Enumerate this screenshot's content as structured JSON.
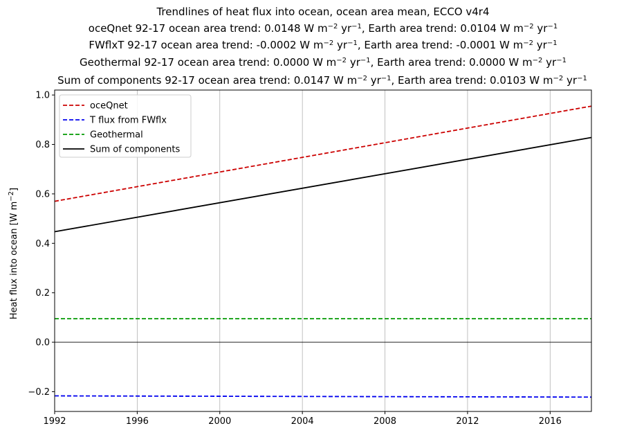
{
  "chart_data": {
    "type": "line",
    "title_lines": [
      {
        "text": "Trendlines of heat flux into ocean, ocean area mean, ECCO v4r4"
      },
      {
        "pre": "oceQnet 92-17 ocean area trend: 0.0148 W m",
        "sup1": "−2",
        "mid": " yr",
        "sup2": "−1",
        "post": ", Earth area trend: 0.0104 W m",
        "sup3": "−2",
        "mid2": " yr",
        "sup4": "−1"
      },
      {
        "pre": "FWflxT 92-17 ocean area trend: -0.0002 W m",
        "sup1": "−2",
        "mid": " yr",
        "sup2": "−1",
        "post": ", Earth area trend: -0.0001 W m",
        "sup3": "−2",
        "mid2": " yr",
        "sup4": "−1"
      },
      {
        "pre": "Geothermal 92-17 ocean area trend: 0.0000 W m",
        "sup1": "−2",
        "mid": " yr",
        "sup2": "−1",
        "post": ", Earth area trend: 0.0000 W m",
        "sup3": "−2",
        "mid2": " yr",
        "sup4": "−1"
      },
      {
        "pre": "Sum of components 92-17 ocean area trend: 0.0147 W m",
        "sup1": "−2",
        "mid": " yr",
        "sup2": "−1",
        "post": ", Earth area trend: 0.0103 W m",
        "sup3": "−2",
        "mid2": " yr",
        "sup4": "−1"
      }
    ],
    "ylabel": {
      "pre": "Heat flux into ocean [W m",
      "sup": "−2",
      "post": "]"
    },
    "xlabel": "",
    "xlim": [
      1992,
      2018
    ],
    "ylim": [
      -0.28,
      1.02
    ],
    "xticks": [
      1992,
      1996,
      2000,
      2004,
      2008,
      2012,
      2016
    ],
    "xtick_labels": [
      "1992",
      "1996",
      "2000",
      "2004",
      "2008",
      "2012",
      "2016"
    ],
    "yticks": [
      -0.2,
      0.0,
      0.2,
      0.4,
      0.6,
      0.8,
      1.0
    ],
    "ytick_labels": [
      "−0.2",
      "0.0",
      "0.2",
      "0.4",
      "0.6",
      "0.8",
      "1.0"
    ],
    "grid": "vertical",
    "zero_line": true,
    "legend_position": "upper-left",
    "series": [
      {
        "name": "oceQnet",
        "color": "#cc0000",
        "dash": "dashed",
        "x": [
          1992,
          2018
        ],
        "y": [
          0.57,
          0.955
        ]
      },
      {
        "name": "T flux from FWflx",
        "color": "#0000ee",
        "dash": "dashed",
        "x": [
          1992,
          2018
        ],
        "y": [
          -0.217,
          -0.222
        ]
      },
      {
        "name": "Geothermal",
        "color": "#009900",
        "dash": "dashed",
        "x": [
          1992,
          2018
        ],
        "y": [
          0.095,
          0.095
        ]
      },
      {
        "name": "Sum of components",
        "color": "#000000",
        "dash": "solid",
        "x": [
          1992,
          2018
        ],
        "y": [
          0.447,
          0.828
        ]
      }
    ]
  }
}
